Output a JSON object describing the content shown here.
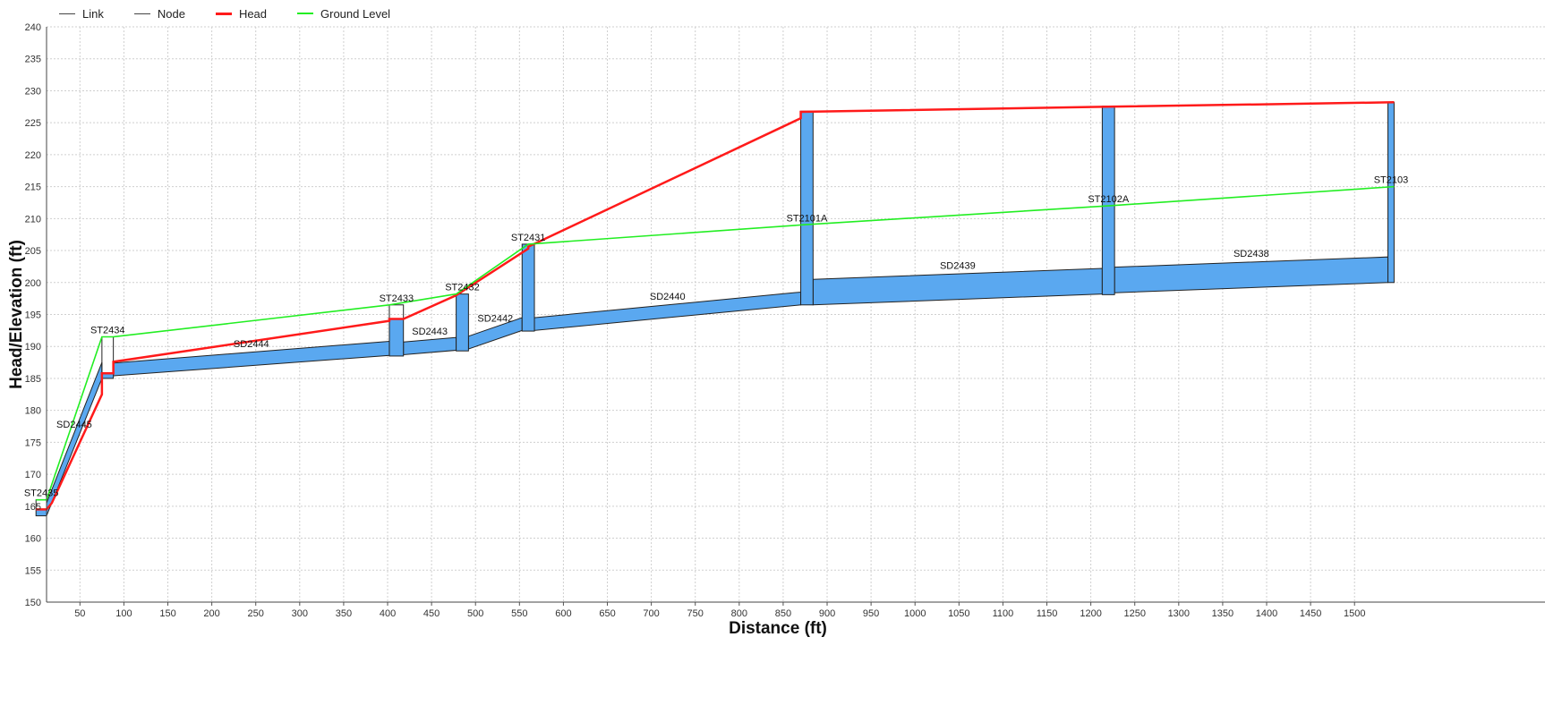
{
  "legend": {
    "link": "Link",
    "node": "Node",
    "head": "Head",
    "ground": "Ground Level"
  },
  "colors": {
    "link": "#444444",
    "node": "#444444",
    "head": "#ff1a1a",
    "ground": "#22ee22",
    "fill": "#5aa8f0",
    "grid": "#cfcfcf"
  },
  "chart_data": {
    "type": "line",
    "xlabel": "Distance (ft)",
    "ylabel": "Head/Elevation (ft)",
    "xlim": [
      0,
      1545
    ],
    "ylim": [
      150,
      240
    ],
    "xticks": [
      50,
      100,
      150,
      200,
      250,
      300,
      350,
      400,
      450,
      500,
      550,
      600,
      650,
      700,
      750,
      800,
      850,
      900,
      950,
      1000,
      1050,
      1100,
      1150,
      1200,
      1250,
      1300,
      1350,
      1400,
      1450,
      1500
    ],
    "yticks": [
      150,
      155,
      160,
      165,
      170,
      175,
      180,
      185,
      190,
      195,
      200,
      205,
      210,
      215,
      220,
      225,
      230,
      235,
      240
    ],
    "grid": true,
    "legend_position": "top-left",
    "series": [
      {
        "name": "Head",
        "x": [
          0,
          12,
          18,
          75,
          75,
          88,
          88,
          402,
          402,
          418,
          418,
          478,
          478,
          560,
          560,
          870,
          870,
          1220,
          1545
        ],
        "y": [
          164.5,
          164.5,
          165.5,
          182.5,
          185.8,
          185.8,
          187.6,
          194.0,
          194.3,
          194.3,
          194.3,
          198.0,
          198.0,
          205.3,
          205.6,
          225.7,
          226.7,
          227.5,
          228.2
        ]
      },
      {
        "name": "Ground Level",
        "x": [
          0,
          12,
          75,
          88,
          402,
          478,
          560,
          870,
          1220,
          1545
        ],
        "y": [
          166.0,
          166.0,
          191.5,
          191.5,
          196.5,
          198.2,
          206.0,
          209.0,
          212.0,
          215.0
        ]
      }
    ],
    "nodes": [
      {
        "name": "ST2435",
        "x0": 0,
        "x1": 12,
        "invert": 163.5,
        "rim": 166.0,
        "water": 164.5
      },
      {
        "name": "ST2434",
        "x0": 75,
        "x1": 88,
        "invert": 185.0,
        "rim": 191.5,
        "water": 185.8
      },
      {
        "name": "ST2433",
        "x0": 402,
        "x1": 418,
        "invert": 188.5,
        "rim": 196.5,
        "water": 194.3
      },
      {
        "name": "ST2432",
        "x0": 478,
        "x1": 492,
        "invert": 189.3,
        "rim": 198.2,
        "water": 198.2
      },
      {
        "name": "ST2431",
        "x0": 553,
        "x1": 567,
        "invert": 192.4,
        "rim": 206.0,
        "water": 206.0
      },
      {
        "name": "ST2101A",
        "x0": 870,
        "x1": 884,
        "invert": 196.5,
        "rim": 209.0,
        "water": 226.8
      },
      {
        "name": "ST2102A",
        "x0": 1213,
        "x1": 1227,
        "invert": 198.1,
        "rim": 212.0,
        "water": 227.6
      },
      {
        "name": "ST2103",
        "x0": 1538,
        "x1": 1545,
        "invert": 200.0,
        "rim": 215.0,
        "water": 228.2
      }
    ],
    "links": [
      {
        "name": "SD2445",
        "x0": 12,
        "x1": 75,
        "bot0": 163.5,
        "top0": 165.5,
        "bot1": 185.0,
        "top1": 187.5
      },
      {
        "name": "SD2444",
        "x0": 88,
        "x1": 402,
        "bot0": 185.4,
        "top0": 187.4,
        "bot1": 188.6,
        "top1": 190.8
      },
      {
        "name": "SD2443",
        "x0": 418,
        "x1": 478,
        "bot0": 188.7,
        "top0": 190.7,
        "bot1": 189.4,
        "top1": 191.4
      },
      {
        "name": "SD2442",
        "x0": 492,
        "x1": 553,
        "bot0": 189.6,
        "top0": 191.6,
        "bot1": 192.5,
        "top1": 194.5
      },
      {
        "name": "SD2440",
        "x0": 567,
        "x1": 870,
        "bot0": 192.5,
        "top0": 194.5,
        "bot1": 196.5,
        "top1": 198.5
      },
      {
        "name": "SD2439",
        "x0": 884,
        "x1": 1213,
        "bot0": 196.5,
        "top0": 200.5,
        "bot1": 198.2,
        "top1": 202.2
      },
      {
        "name": "SD2438",
        "x0": 1227,
        "x1": 1538,
        "bot0": 198.4,
        "top0": 202.4,
        "bot1": 200.0,
        "top1": 204.0
      }
    ]
  }
}
